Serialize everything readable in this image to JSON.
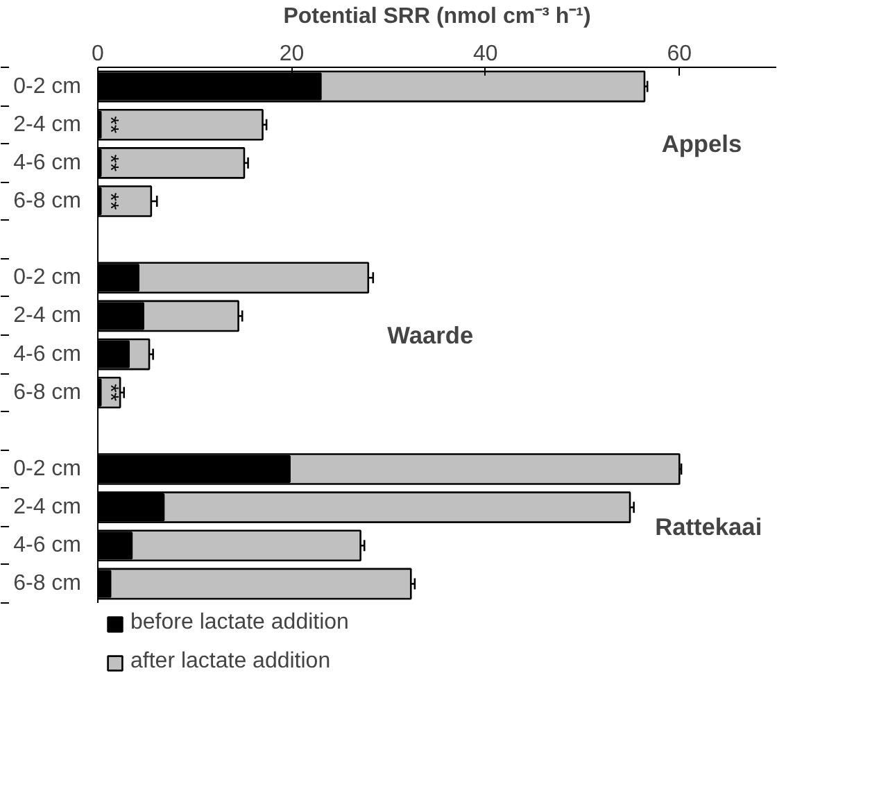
{
  "chart_data": {
    "type": "bar",
    "orientation": "horizontal",
    "xlabel": "Potential SRR (nmol cm⁻³ h⁻¹)",
    "categories": [
      "0-2 cm",
      "2-4 cm",
      "4-6 cm",
      "6-8 cm",
      null,
      "0-2 cm",
      "2-4 cm",
      "4-6 cm",
      "6-8 cm",
      null,
      "0-2 cm",
      "2-4 cm",
      "4-6 cm",
      "6-8 cm"
    ],
    "series": [
      {
        "name": "after lactate addition",
        "color": "#c0c0c0",
        "values": [
          56.4,
          17.0,
          15.1,
          5.5,
          null,
          27.9,
          14.5,
          5.3,
          2.3,
          null,
          60.0,
          54.9,
          27.1,
          32.3
        ],
        "errors": [
          0.3,
          0.4,
          0.4,
          0.6,
          null,
          0.5,
          0.4,
          0.4,
          0.4,
          null,
          0.2,
          0.4,
          0.4,
          0.4
        ]
      },
      {
        "name": "before lactate addition",
        "color": "#000000",
        "values": [
          23.0,
          0.3,
          0.3,
          0.3,
          null,
          4.2,
          4.7,
          3.2,
          0.3,
          null,
          19.8,
          6.8,
          3.5,
          1.3
        ],
        "errors": [
          0.3,
          null,
          null,
          null,
          null,
          null,
          null,
          null,
          null,
          null,
          0.3,
          0.3,
          0.3,
          null
        ],
        "value_labels": [
          null,
          "**",
          "**",
          "**",
          null,
          null,
          null,
          null,
          "**",
          null,
          null,
          null,
          null,
          null
        ]
      }
    ],
    "xlim": [
      0,
      70
    ],
    "xticks": [
      0,
      20,
      40,
      60
    ],
    "grid": false,
    "legend": "bottom",
    "annotations": [
      "Appels",
      "Waarde",
      "Rattekaai"
    ]
  }
}
